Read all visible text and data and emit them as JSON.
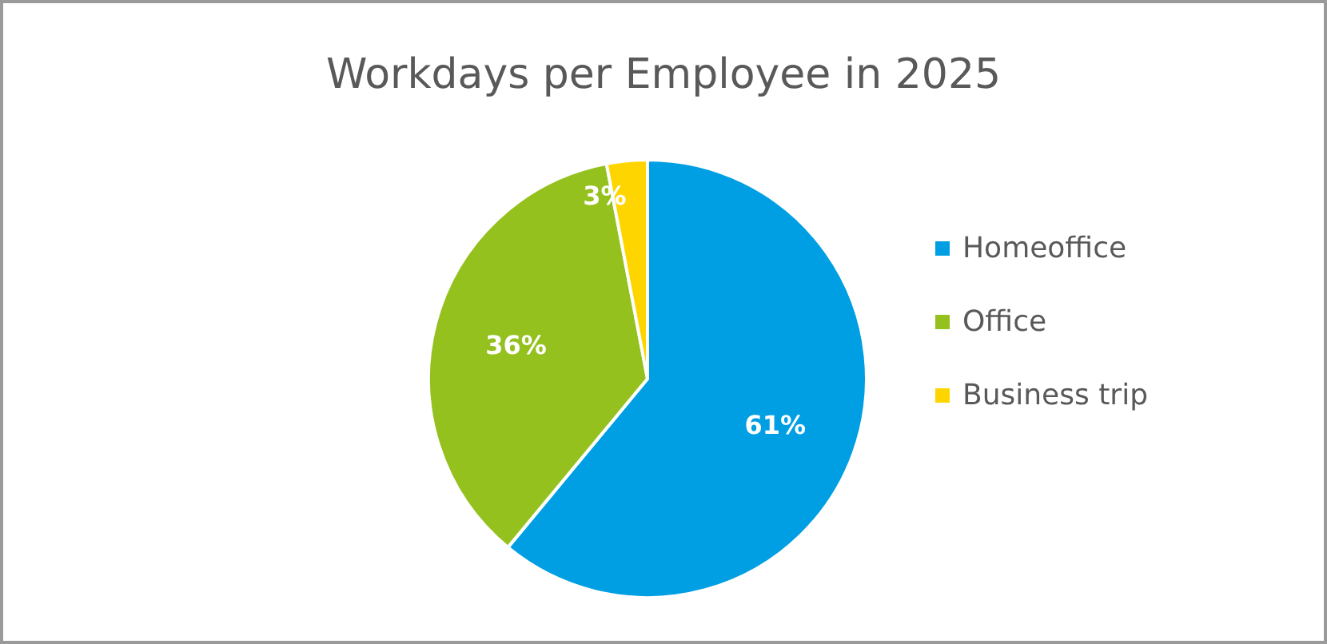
{
  "chart_data": {
    "type": "pie",
    "title": "Workdays per Employee in 2025",
    "categories": [
      "Homeoffice",
      "Office",
      "Business trip"
    ],
    "values": [
      61,
      36,
      3
    ],
    "colors": [
      "#009fe3",
      "#95c11f",
      "#ffd500"
    ],
    "value_labels": [
      "61%",
      "36%",
      "3%"
    ],
    "legend": "right"
  }
}
